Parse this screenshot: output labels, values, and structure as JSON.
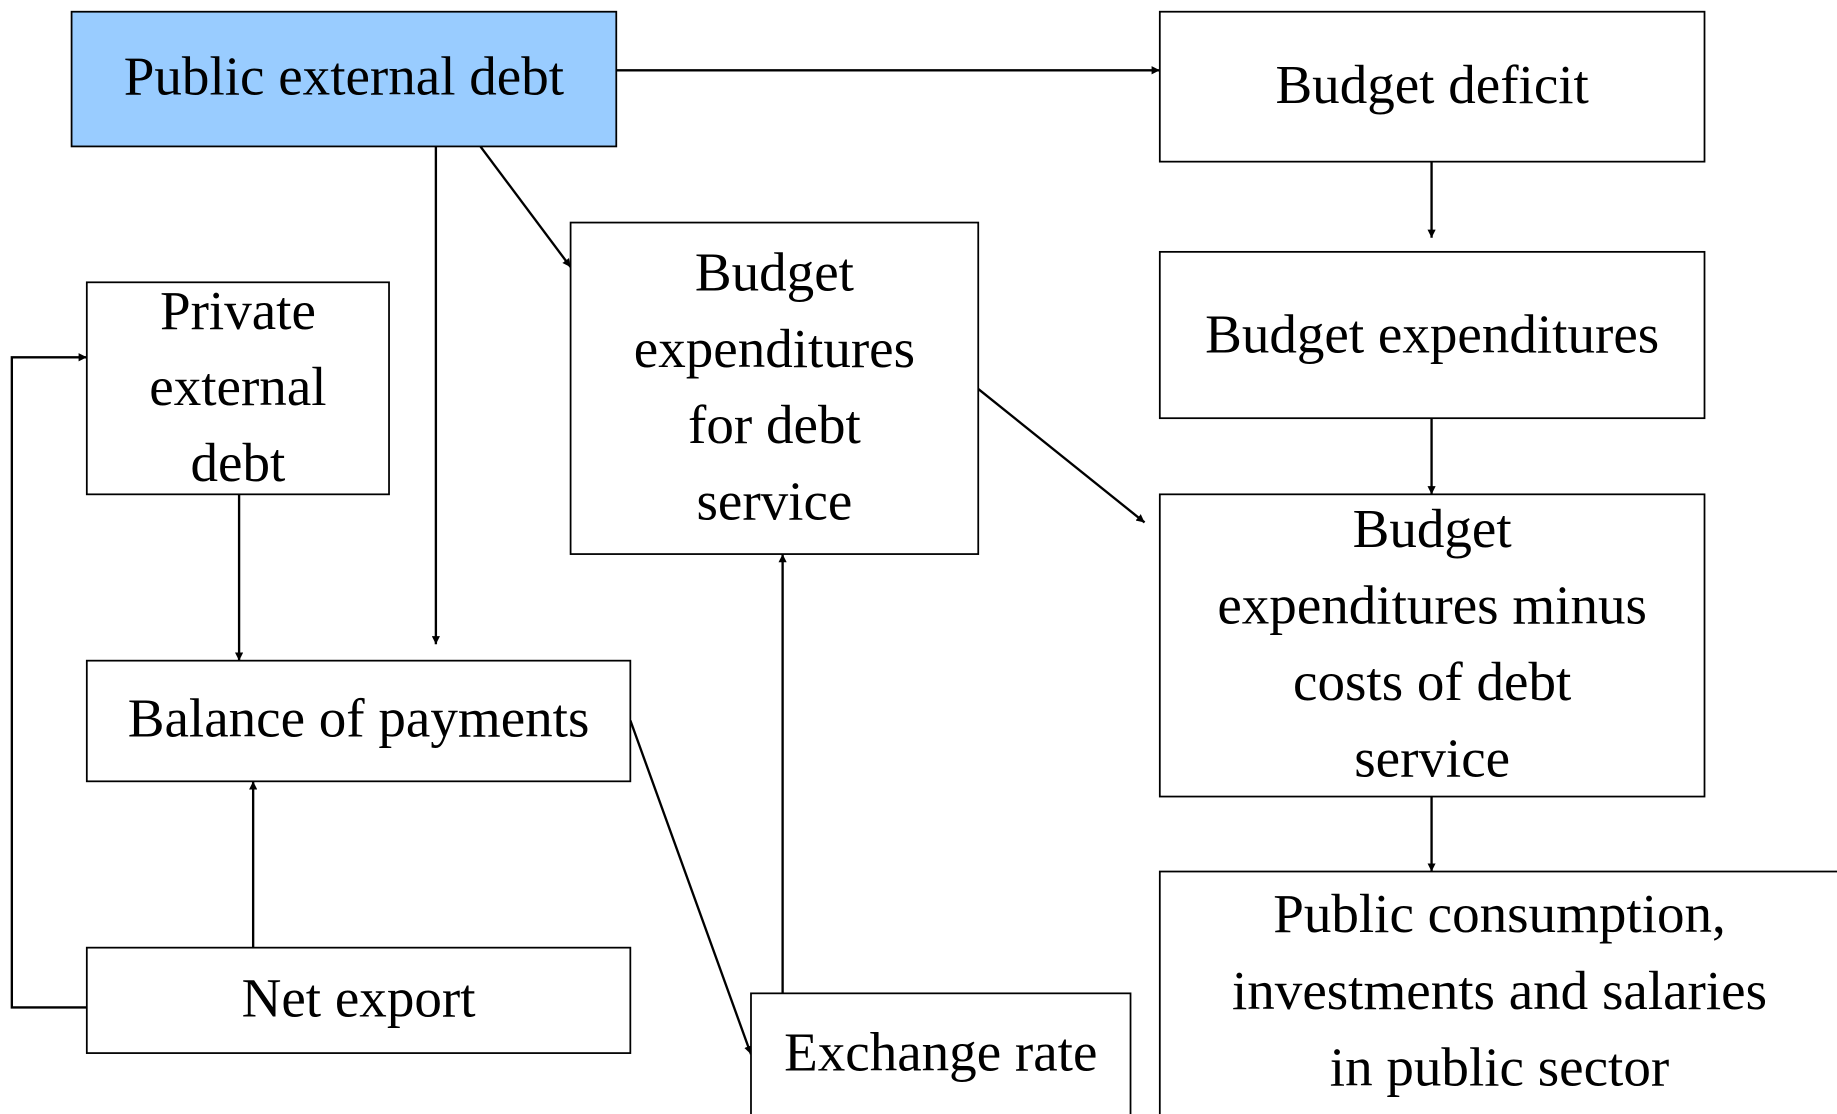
{
  "nodes": [
    {
      "lines": [
        "Public external debt"
      ]
    },
    {
      "lines": [
        "Budget deficit"
      ]
    },
    {
      "lines": [
        "Budget",
        "expenditures",
        "for debt",
        "service"
      ]
    },
    {
      "lines": [
        "Private",
        "external",
        "debt"
      ]
    },
    {
      "lines": [
        "Budget expenditures"
      ]
    },
    {
      "lines": [
        "Budget",
        "expenditures minus",
        "costs of debt",
        "service"
      ]
    },
    {
      "lines": [
        "Balance of payments"
      ]
    },
    {
      "lines": [
        "Net export"
      ]
    },
    {
      "lines": [
        "Exchange rate"
      ]
    },
    {
      "lines": [
        "Public consumption,",
        "investments and salaries",
        "in public sector"
      ]
    }
  ]
}
